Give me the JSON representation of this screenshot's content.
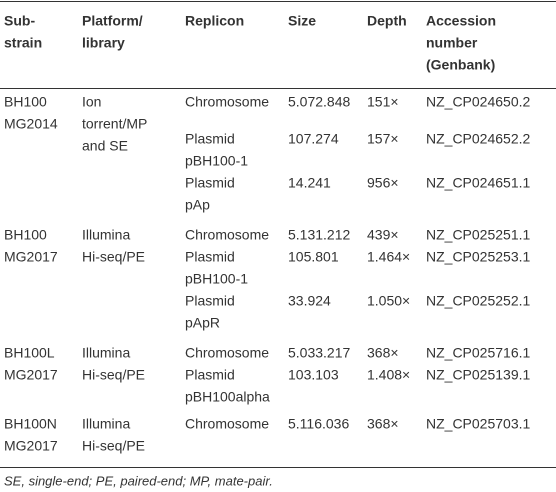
{
  "table": {
    "header": [
      [
        "Sub-",
        "strain"
      ],
      [
        "Platform/",
        "library"
      ],
      [
        "Replicon"
      ],
      [
        "Size"
      ],
      [
        "Depth"
      ],
      [
        "Accession",
        "number",
        "(Genbank)"
      ]
    ],
    "groups": [
      {
        "substrain": [
          "BH100",
          "MG2014"
        ],
        "platform": [
          "Ion",
          "torrent/MP",
          "and SE"
        ],
        "replicons": [
          {
            "replicon": [
              "Chromosome"
            ],
            "size": "5.072.848",
            "depth": "151×",
            "accession": "NZ_CP024650.2"
          },
          {
            "replicon": [
              "Plasmid",
              "pBH100-1"
            ],
            "size": "107.274",
            "depth": "157×",
            "accession": "NZ_CP024652.2"
          },
          {
            "replicon": [
              "Plasmid",
              "pAp"
            ],
            "size": "14.241",
            "depth": "956×",
            "accession": "NZ_CP024651.1"
          }
        ]
      },
      {
        "substrain": [
          "BH100",
          "MG2017"
        ],
        "platform": [
          "Illumina",
          "Hi-seq/PE"
        ],
        "replicons": [
          {
            "replicon": [
              "Chromosome"
            ],
            "size": "5.131.212",
            "depth": "439×",
            "accession": "NZ_CP025251.1"
          },
          {
            "replicon": [
              "Plasmid",
              "pBH100-1"
            ],
            "size": "105.801",
            "depth": "1.464×",
            "accession": "NZ_CP025253.1"
          },
          {
            "replicon": [
              "Plasmid",
              "pApR"
            ],
            "size": "33.924",
            "depth": "1.050×",
            "accession": "NZ_CP025252.1"
          }
        ]
      },
      {
        "substrain": [
          "BH100L",
          "MG2017"
        ],
        "platform": [
          "Illumina",
          "Hi-seq/PE"
        ],
        "replicons": [
          {
            "replicon": [
              "Chromosome"
            ],
            "size": "5.033.217",
            "depth": "368×",
            "accession": "NZ_CP025716.1"
          },
          {
            "replicon": [
              "Plasmid",
              "pBH100alpha"
            ],
            "size": "103.103",
            "depth": "1.408×",
            "accession": "NZ_CP025139.1"
          }
        ]
      },
      {
        "substrain": [
          "BH100N",
          "MG2017"
        ],
        "platform": [
          "Illumina",
          "Hi-seq/PE"
        ],
        "replicons": [
          {
            "replicon": [
              "Chromosome"
            ],
            "size": "5.116.036",
            "depth": "368×",
            "accession": "NZ_CP025703.1"
          }
        ]
      }
    ],
    "footnote": "SE, single-end; PE, paired-end; MP, mate-pair."
  }
}
